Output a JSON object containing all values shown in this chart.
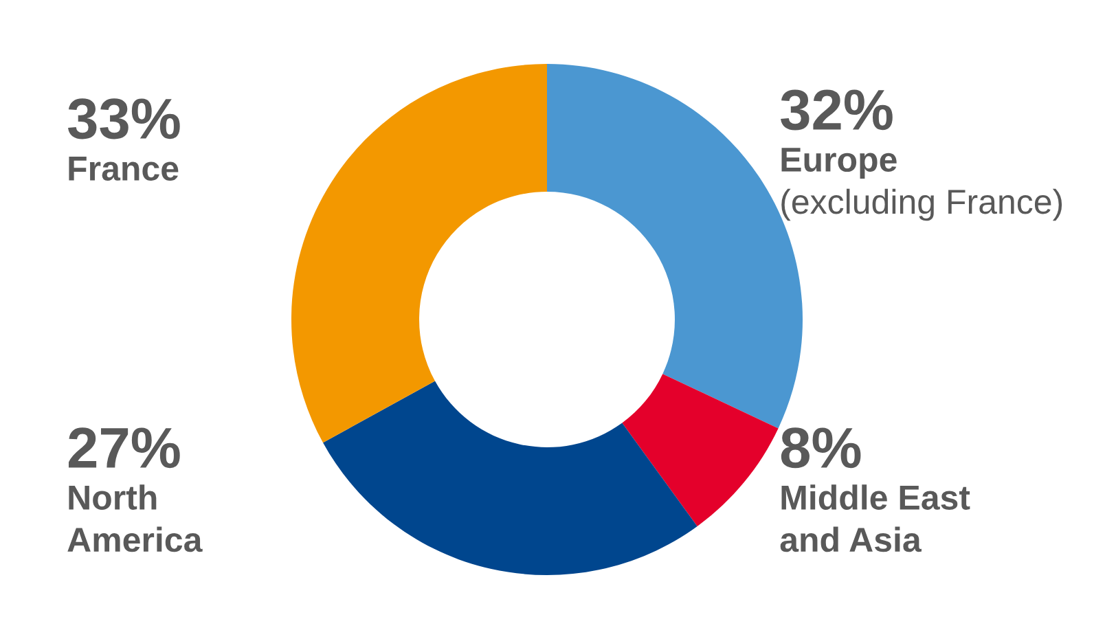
{
  "chart_data": {
    "type": "donut",
    "categories": [
      "Europe\n(excluding France)",
      "Middle East\nand Asia",
      "North\nAmerica",
      "France"
    ],
    "values": [
      32,
      8,
      27,
      33
    ],
    "colors": [
      "#4b97d1",
      "#e4002b",
      "#00468e",
      "#f39800"
    ],
    "value_labels": [
      "32%",
      "8%",
      "27%",
      "33%"
    ],
    "legend": false
  }
}
